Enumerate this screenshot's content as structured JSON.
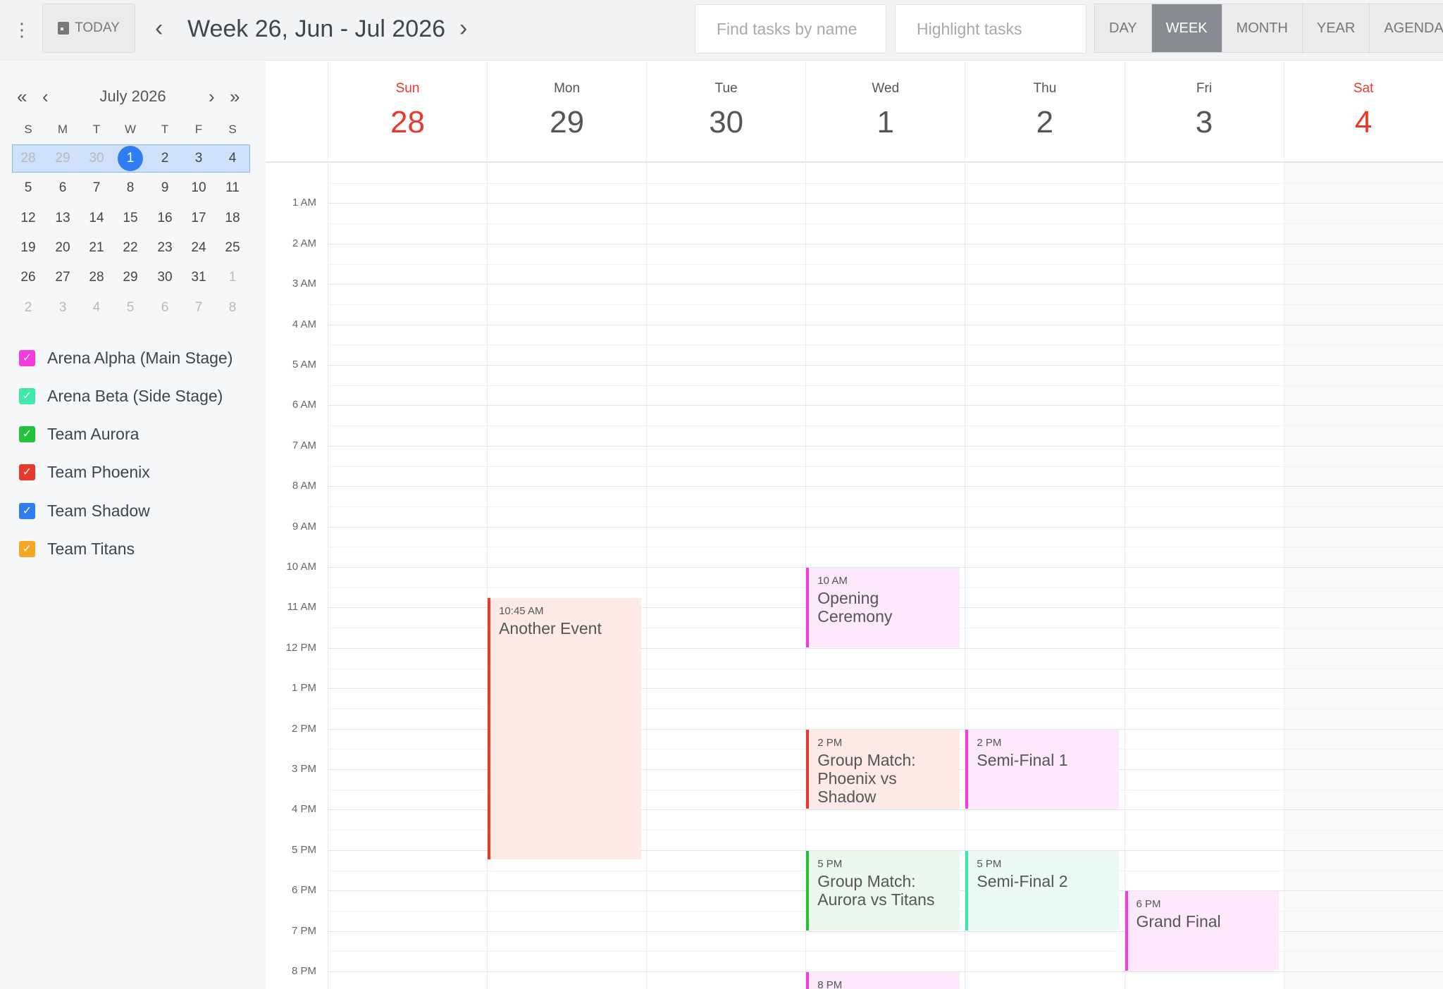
{
  "toolbar": {
    "today_label": "TODAY",
    "title": "Week 26, Jun - Jul 2026",
    "search_placeholder": "Find tasks by name",
    "highlight_placeholder": "Highlight tasks",
    "views": [
      "DAY",
      "WEEK",
      "MONTH",
      "YEAR",
      "AGENDA"
    ],
    "active_view": "WEEK"
  },
  "mini_calendar": {
    "title": "July 2026",
    "weekdays": [
      "S",
      "M",
      "T",
      "W",
      "T",
      "F",
      "S"
    ],
    "weeks": [
      [
        "28",
        "29",
        "30",
        "1",
        "2",
        "3",
        "4"
      ],
      [
        "5",
        "6",
        "7",
        "8",
        "9",
        "10",
        "11"
      ],
      [
        "12",
        "13",
        "14",
        "15",
        "16",
        "17",
        "18"
      ],
      [
        "19",
        "20",
        "21",
        "22",
        "23",
        "24",
        "25"
      ],
      [
        "26",
        "27",
        "28",
        "29",
        "30",
        "31",
        "1"
      ],
      [
        "2",
        "3",
        "4",
        "5",
        "6",
        "7",
        "8"
      ]
    ],
    "selected": "1"
  },
  "calendars": [
    {
      "label": "Arena Alpha (Main Stage)",
      "color": "#f53be0",
      "checked": true
    },
    {
      "label": "Arena Beta (Side Stage)",
      "color": "#3de8a8",
      "checked": true
    },
    {
      "label": "Team Aurora",
      "color": "#23c23a",
      "checked": true
    },
    {
      "label": "Team Phoenix",
      "color": "#e8392a",
      "checked": true
    },
    {
      "label": "Team Shadow",
      "color": "#2f7df0",
      "checked": true
    },
    {
      "label": "Team Titans",
      "color": "#f5a623",
      "checked": true
    }
  ],
  "days": [
    {
      "name": "Sun",
      "date": "28",
      "weekend": true
    },
    {
      "name": "Mon",
      "date": "29"
    },
    {
      "name": "Tue",
      "date": "30"
    },
    {
      "name": "Wed",
      "date": "1"
    },
    {
      "name": "Thu",
      "date": "2"
    },
    {
      "name": "Fri",
      "date": "3"
    },
    {
      "name": "Sat",
      "date": "4",
      "weekend": true
    }
  ],
  "hours": [
    "1 AM",
    "2 AM",
    "3 AM",
    "4 AM",
    "5 AM",
    "6 AM",
    "7 AM",
    "8 AM",
    "9 AM",
    "10 AM",
    "11 AM",
    "12 PM",
    "1 PM",
    "2 PM",
    "3 PM",
    "4 PM",
    "5 PM",
    "6 PM",
    "7 PM",
    "8 PM"
  ],
  "events": [
    {
      "day": 1,
      "start": 10.75,
      "end": 17.25,
      "time": "10:45 AM",
      "title": "Another Event",
      "color": "#e8392a",
      "bg": "#fdeae7"
    },
    {
      "day": 3,
      "start": 10,
      "end": 12,
      "time": "10 AM",
      "title": "Opening Ceremony",
      "color": "#f53be0",
      "bg": "#fde9fb"
    },
    {
      "day": 3,
      "start": 14,
      "end": 16,
      "time": "2 PM",
      "title": "Group Match: Phoenix vs Shadow",
      "color": "#e8392a",
      "bg": "#fdeae7"
    },
    {
      "day": 3,
      "start": 17,
      "end": 19,
      "time": "5 PM",
      "title": "Group Match: Aurora vs Titans",
      "color": "#23c23a",
      "bg": "#ecf8ee"
    },
    {
      "day": 3,
      "start": 20,
      "end": 22,
      "time": "8 PM",
      "title": "",
      "color": "#f53be0",
      "bg": "#fde9fb"
    },
    {
      "day": 4,
      "start": 14,
      "end": 16,
      "time": "2 PM",
      "title": "Semi-Final 1",
      "color": "#f53be0",
      "bg": "#fde9fb"
    },
    {
      "day": 4,
      "start": 17,
      "end": 19,
      "time": "5 PM",
      "title": "Semi-Final 2",
      "color": "#3de8a8",
      "bg": "#ebfbf4"
    },
    {
      "day": 5,
      "start": 18,
      "end": 20,
      "time": "6 PM",
      "title": "Grand Final",
      "color": "#f53be0",
      "bg": "#fde9fb"
    }
  ]
}
